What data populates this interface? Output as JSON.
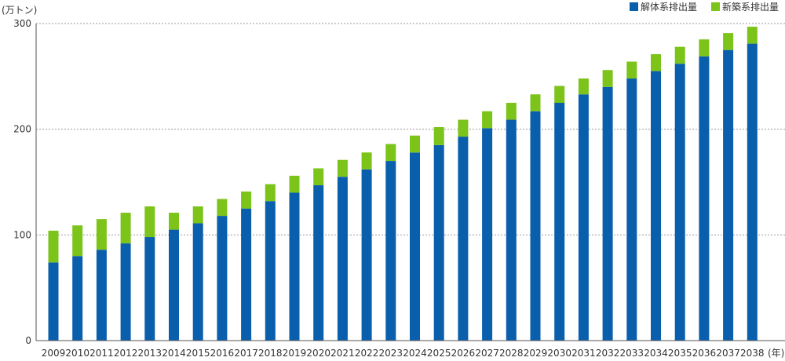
{
  "chart_data": {
    "type": "bar",
    "stacked": true,
    "y_unit_label": "(万トン)",
    "x_unit_label": "(年)",
    "ylim": [
      0,
      300
    ],
    "yticks": [
      0,
      100,
      200,
      300
    ],
    "grid": true,
    "legend_position": "top-right",
    "categories": [
      "2009",
      "2010",
      "2011",
      "2012",
      "2013",
      "2014",
      "2015",
      "2016",
      "2017",
      "2018",
      "2019",
      "2020",
      "2021",
      "2022",
      "2023",
      "2024",
      "2025",
      "2026",
      "2027",
      "2028",
      "2029",
      "2030",
      "2031",
      "2032",
      "2033",
      "2034",
      "2035",
      "2036",
      "2037",
      "2038"
    ],
    "series": [
      {
        "name": "解体系排出量",
        "color": "#0a5fad",
        "values": [
          74,
          80,
          86,
          92,
          98,
          105,
          111,
          118,
          125,
          132,
          140,
          147,
          155,
          162,
          170,
          178,
          185,
          193,
          201,
          209,
          217,
          225,
          233,
          240,
          248,
          255,
          262,
          269,
          275,
          281
        ]
      },
      {
        "name": "新築系排出量",
        "color": "#7cc31a",
        "values": [
          30,
          29,
          29,
          29,
          29,
          16,
          16,
          16,
          16,
          16,
          16,
          16,
          16,
          16,
          16,
          16,
          17,
          16,
          16,
          16,
          16,
          16,
          15,
          16,
          16,
          16,
          16,
          16,
          16,
          16
        ]
      }
    ]
  }
}
